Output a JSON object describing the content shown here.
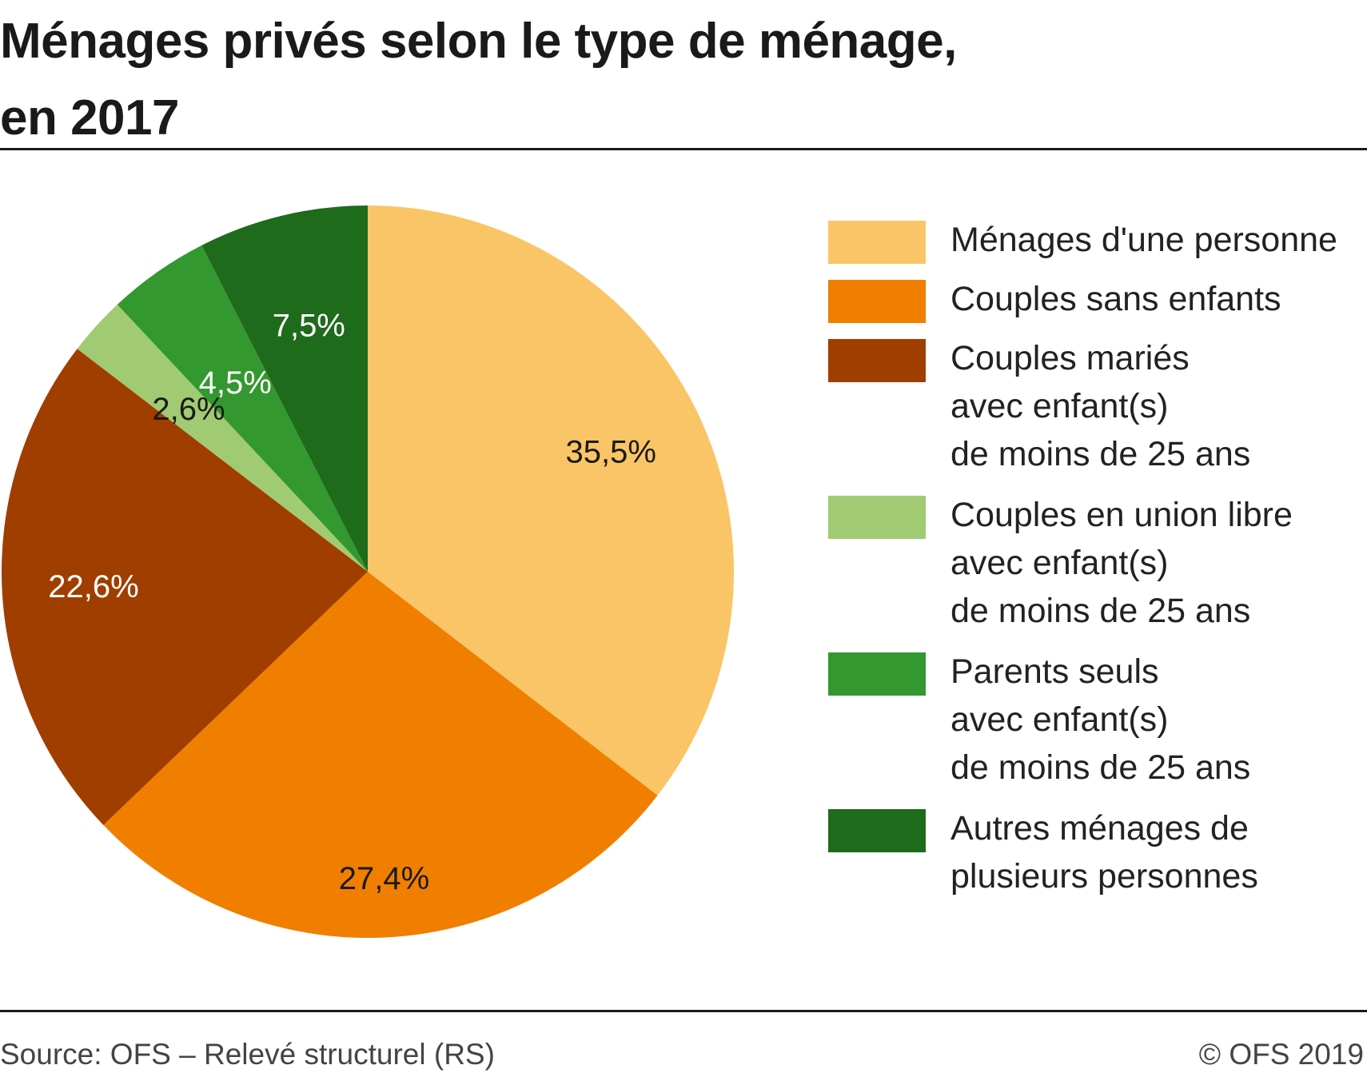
{
  "title": {
    "line1": "Ménages privés selon le type de ménage,",
    "line2": "en 2017"
  },
  "footer": {
    "source": "Source: OFS – Relevé structurel (RS)",
    "copyright": "© OFS 2019"
  },
  "chart_data": {
    "type": "pie",
    "title": "Ménages privés selon le type de ménage, en 2017",
    "start": "12 o'clock, clockwise",
    "legend_position": "right",
    "slices": [
      {
        "name": "Ménages d'une personne",
        "value": 35.5,
        "label": "35,5%",
        "color": "#F9C566",
        "label_color": "#1a1a1a",
        "legend_lines": [
          "Ménages d'une personne"
        ]
      },
      {
        "name": "Couples sans enfants",
        "value": 27.4,
        "label": "27,4%",
        "color": "#F07F00",
        "label_color": "#1a1a1a",
        "legend_lines": [
          "Couples sans enfants"
        ]
      },
      {
        "name": "Couples mariés avec enfant(s) de moins de 25 ans",
        "value": 22.6,
        "label": "22,6%",
        "color": "#A03E00",
        "label_color": "#ffffff",
        "legend_lines": [
          "Couples mariés",
          "avec enfant(s)",
          "de moins de 25 ans"
        ]
      },
      {
        "name": "Couples en union libre avec enfant(s) de moins de 25 ans",
        "value": 2.6,
        "label": "2,6%",
        "color": "#A0CB72",
        "label_color": "#1a1a1a",
        "legend_lines": [
          "Couples en union libre",
          "avec enfant(s)",
          "de moins de 25 ans"
        ]
      },
      {
        "name": "Parents seuls avec enfant(s) de moins de 25 ans",
        "value": 4.5,
        "label": "4,5%",
        "color": "#33982F",
        "label_color": "#ffffff",
        "legend_lines": [
          "Parents seuls",
          "avec enfant(s)",
          "de moins de 25 ans"
        ]
      },
      {
        "name": "Autres ménages de plusieurs personnes",
        "value": 7.5,
        "label": "7,5%",
        "color": "#1F6B1C",
        "label_color": "#ffffff",
        "legend_lines": [
          "Autres ménages de",
          "plusieurs personnes"
        ]
      }
    ]
  }
}
